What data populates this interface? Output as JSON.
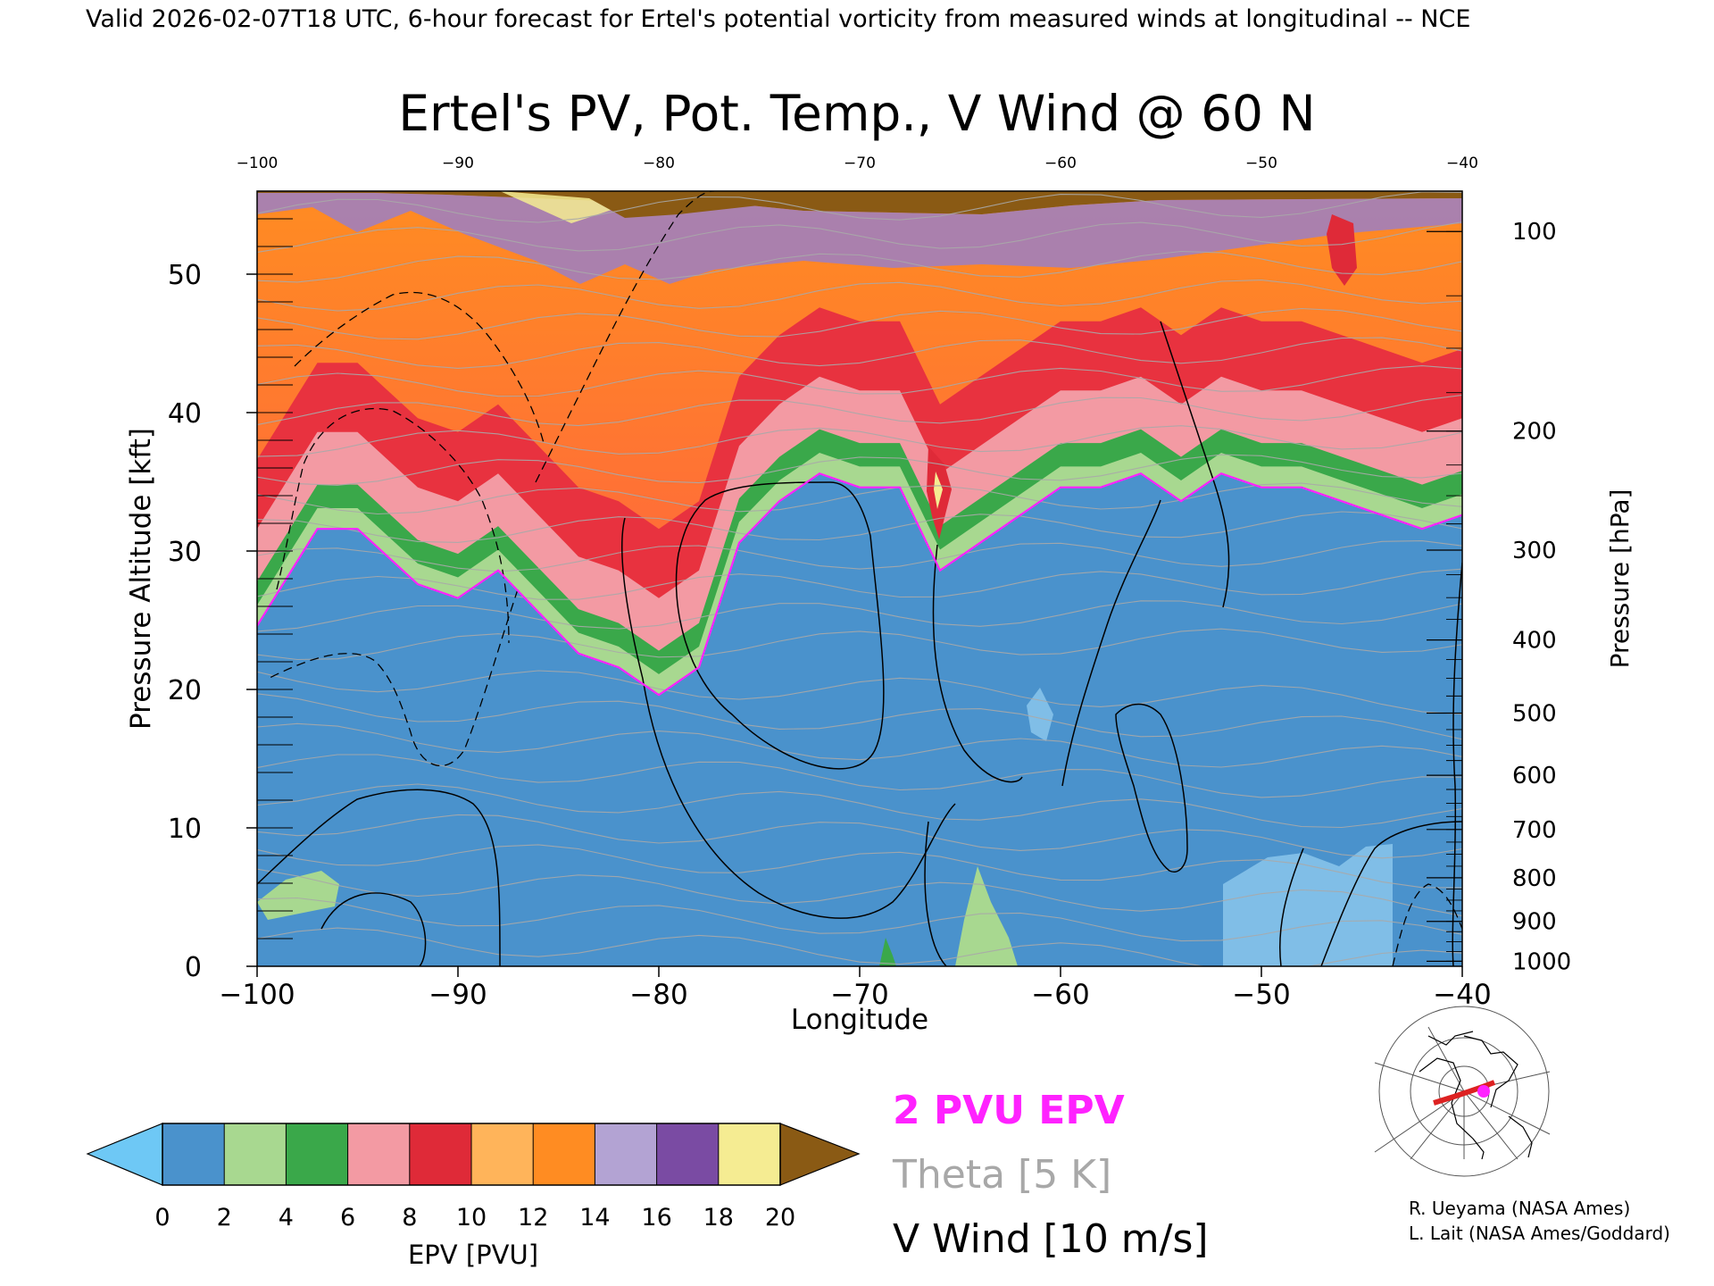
{
  "header": "Valid 2026-02-07T18 UTC, 6-hour forecast for Ertel's potential vorticity from measured winds at longitudinal -- NCE",
  "credits": [
    "R. Ueyama (NASA Ames)",
    "L. Lait (NASA Ames/Goddard)"
  ],
  "legend_labels": {
    "pvu": "2 PVU EPV",
    "theta": "Theta [5 K]",
    "vwind": "V Wind [10 m/s]"
  },
  "colors": {
    "pvu": "#ff22ff",
    "theta": "#a8a8a8",
    "vwind": "#000000"
  },
  "chart_data": {
    "type": "heatmap",
    "title": "Ertel's PV, Pot. Temp., V Wind @ 60 N",
    "xlabel": "Longitude",
    "ylabel": "Pressure Altitude [kft]",
    "y2label": "Pressure [hPa]",
    "xlim": [
      -100,
      -40
    ],
    "ylim": [
      0,
      56
    ],
    "x_ticks": [
      -100,
      -90,
      -80,
      -70,
      -60,
      -50,
      -40
    ],
    "y_ticks": [
      0,
      10,
      20,
      30,
      40,
      50
    ],
    "pressure_ticks": [
      100,
      200,
      300,
      400,
      500,
      600,
      700,
      800,
      900,
      1000
    ],
    "colorbar": {
      "label": "EPV [PVU]",
      "ticks": [
        0,
        2,
        4,
        6,
        8,
        10,
        12,
        14,
        16,
        18,
        20
      ],
      "colors": [
        "#6ec8f5",
        "#4a92cc",
        "#a8d890",
        "#3aa84a",
        "#f39aa3",
        "#df2a38",
        "#ffb45a",
        "#ff8c22",
        "#b3a3d3",
        "#7a4ba3",
        "#f5ec92",
        "#8a5a14"
      ]
    },
    "epv_by_longitude": {
      "x": [
        -100,
        -97,
        -95,
        -92,
        -90,
        -88,
        -86,
        -84,
        -82,
        -80,
        -78,
        -76,
        -74,
        -72,
        -70,
        -68,
        -66,
        -64,
        -62,
        -60,
        -58,
        -56,
        -54,
        -52,
        -50,
        -48,
        -46,
        -44,
        -42,
        -40
      ],
      "pv2_altitude_kft": [
        25,
        31,
        32,
        27,
        27,
        28,
        26,
        22,
        22,
        19,
        22,
        30,
        34,
        35,
        35,
        34,
        29,
        30,
        33,
        34,
        35,
        35,
        34,
        35,
        35,
        34,
        34,
        32,
        32,
        32
      ]
    },
    "grid": false
  }
}
